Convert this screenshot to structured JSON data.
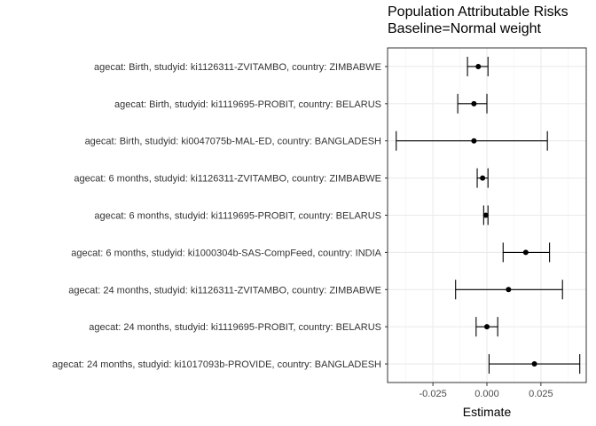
{
  "chart_data": {
    "type": "scatter",
    "title": "Population Attributable Risks",
    "subtitle": "Baseline=Normal weight",
    "xlabel": "Estimate",
    "ylabel": "",
    "xlim": [
      -0.046,
      0.046
    ],
    "x_ticks": [
      -0.025,
      0.0,
      0.025
    ],
    "x_tick_labels": [
      "-0.025",
      "0.000",
      "0.025"
    ],
    "grid": true,
    "categories": [
      "agecat: Birth, studyid: ki1126311-ZVITAMBO, country: ZIMBABWE",
      "agecat: Birth, studyid: ki1119695-PROBIT, country: BELARUS",
      "agecat: Birth, studyid: ki0047075b-MAL-ED, country: BANGLADESH",
      "agecat: 6 months, studyid: ki1126311-ZVITAMBO, country: ZIMBABWE",
      "agecat: 6 months, studyid: ki1119695-PROBIT, country: BELARUS",
      "agecat: 6 months, studyid: ki1000304b-SAS-CompFeed, country: INDIA",
      "agecat: 24 months, studyid: ki1126311-ZVITAMBO, country: ZIMBABWE",
      "agecat: 24 months, studyid: ki1119695-PROBIT, country: BELARUS",
      "agecat: 24 months, studyid: ki1017093b-PROVIDE, country: BANGLADESH"
    ],
    "estimate": [
      -0.004,
      -0.006,
      -0.006,
      -0.002,
      -0.0005,
      0.018,
      0.01,
      0.0,
      0.022
    ],
    "ci_lower": [
      -0.009,
      -0.0135,
      -0.042,
      -0.0045,
      -0.0015,
      0.0075,
      -0.0145,
      -0.005,
      0.001
    ],
    "ci_upper": [
      0.0005,
      0.0,
      0.028,
      0.0005,
      0.0005,
      0.029,
      0.035,
      0.005,
      0.043
    ]
  }
}
